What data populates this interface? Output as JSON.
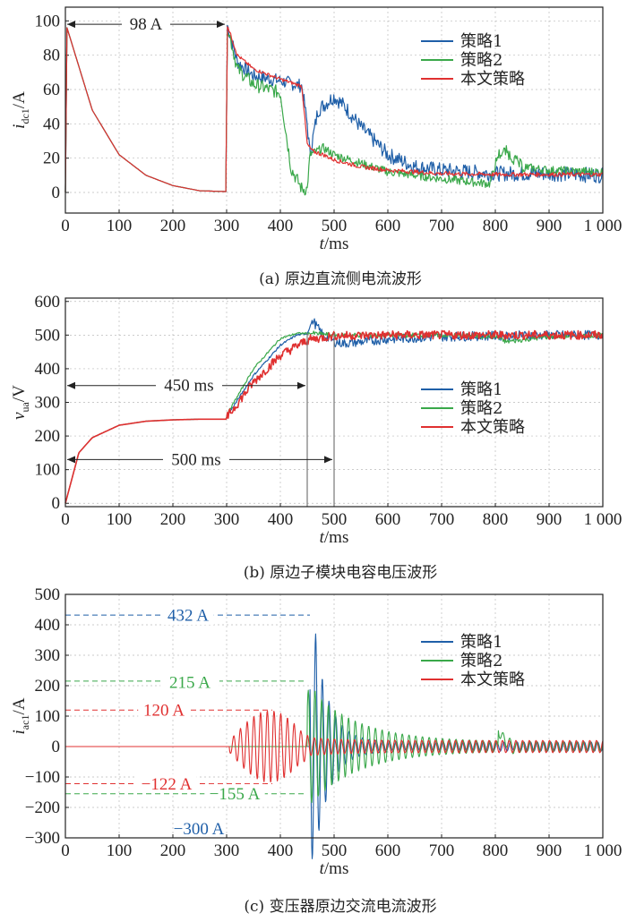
{
  "colors": {
    "strategy1": "#1f5fa8",
    "strategy2": "#3aa84a",
    "this_paper": "#e03030"
  },
  "chart_data": [
    {
      "type": "line",
      "caption": "(a) 原边直流侧电流波形",
      "ylabel_main": "i",
      "ylabel_sub": "dc1",
      "ylabel_unit": "/A",
      "xlabel_main": "t",
      "xlabel_unit": "/ms",
      "xlim": [
        0,
        1000
      ],
      "ylim": [
        -12,
        108
      ],
      "xticks": [
        0,
        100,
        200,
        300,
        400,
        500,
        600,
        700,
        800,
        900,
        1000
      ],
      "xtick_labels": [
        "0",
        "100",
        "200",
        "300",
        "400",
        "500",
        "600",
        "700",
        "800",
        "900",
        "1 000"
      ],
      "yticks": [
        0,
        20,
        40,
        60,
        80,
        100
      ],
      "ytick_labels": [
        "0",
        "20",
        "40",
        "60",
        "80",
        "100"
      ],
      "annotations": [
        {
          "text": "98 A",
          "x_from": 0,
          "x_to": 300,
          "y": 98,
          "color": "#222222"
        }
      ],
      "series": [
        {
          "name": "策略1",
          "x": [
            0,
            3,
            50,
            100,
            150,
            200,
            250,
            299,
            301,
            320,
            350,
            400,
            440,
            450,
            455,
            470,
            500,
            520,
            550,
            600,
            650,
            700,
            750,
            800,
            900,
            1000
          ],
          "y": [
            0,
            96,
            48,
            22,
            10,
            4,
            1,
            0.5,
            98,
            76,
            68,
            65,
            62,
            40,
            22,
            48,
            56,
            50,
            38,
            22,
            15,
            13,
            12,
            11,
            11,
            10
          ]
        },
        {
          "name": "策略2",
          "x": [
            0,
            3,
            50,
            100,
            150,
            200,
            250,
            299,
            301,
            320,
            350,
            400,
            420,
            440,
            450,
            455,
            480,
            500,
            550,
            600,
            700,
            790,
            805,
            820,
            850,
            900,
            1000
          ],
          "y": [
            0,
            96,
            48,
            22,
            10,
            4,
            1,
            0.5,
            98,
            72,
            63,
            58,
            14,
            2,
            2,
            22,
            26,
            22,
            17,
            12,
            8,
            5,
            22,
            24,
            15,
            13,
            12
          ]
        },
        {
          "name": "本文策略",
          "x": [
            0,
            3,
            50,
            100,
            150,
            200,
            250,
            299,
            301,
            320,
            350,
            400,
            440,
            450,
            460,
            480,
            500,
            550,
            600,
            700,
            800,
            1000
          ],
          "y": [
            0,
            96,
            48,
            22,
            10,
            4,
            1,
            0.5,
            98,
            80,
            72,
            66,
            62,
            28,
            24,
            22,
            19,
            15,
            13,
            11,
            10.5,
            10.5
          ]
        }
      ]
    },
    {
      "type": "line",
      "caption": "(b) 原边子模块电容电压波形",
      "ylabel_main": "v",
      "ylabel_sub": "ua",
      "ylabel_unit": "/V",
      "xlabel_main": "t",
      "xlabel_unit": "/ms",
      "xlim": [
        0,
        1000
      ],
      "ylim": [
        -10,
        610
      ],
      "xticks": [
        0,
        100,
        200,
        300,
        400,
        500,
        600,
        700,
        800,
        900,
        1000
      ],
      "xtick_labels": [
        "0",
        "100",
        "200",
        "300",
        "400",
        "500",
        "600",
        "700",
        "800",
        "900",
        "1 000"
      ],
      "yticks": [
        0,
        100,
        200,
        300,
        400,
        500,
        600
      ],
      "ytick_labels": [
        "0",
        "100",
        "200",
        "300",
        "400",
        "500",
        "600"
      ],
      "annotations": [
        {
          "text": "450 ms",
          "x_from": 0,
          "x_to": 450,
          "y": 350,
          "color": "#222222"
        },
        {
          "text": "500 ms",
          "x_from": 0,
          "x_to": 500,
          "y": 130,
          "color": "#222222"
        }
      ],
      "series": [
        {
          "name": "策略1",
          "x": [
            0,
            25,
            50,
            100,
            150,
            200,
            250,
            299,
            302,
            350,
            400,
            430,
            450,
            460,
            470,
            480,
            500,
            520,
            600,
            700,
            800,
            900,
            1000
          ],
          "y": [
            0,
            150,
            195,
            232,
            244,
            248,
            250,
            250,
            262,
            380,
            470,
            500,
            505,
            545,
            520,
            500,
            480,
            475,
            488,
            495,
            498,
            500,
            500
          ]
        },
        {
          "name": "策略2",
          "x": [
            0,
            25,
            50,
            100,
            150,
            200,
            250,
            299,
            302,
            350,
            400,
            430,
            460,
            500,
            600,
            700,
            800,
            820,
            900,
            1000
          ],
          "y": [
            0,
            150,
            195,
            232,
            244,
            248,
            250,
            250,
            268,
            400,
            490,
            505,
            505,
            500,
            500,
            500,
            495,
            480,
            495,
            500
          ]
        },
        {
          "name": "本文策略",
          "x": [
            0,
            25,
            50,
            100,
            150,
            200,
            250,
            299,
            302,
            350,
            400,
            450,
            500,
            600,
            700,
            800,
            900,
            1000
          ],
          "y": [
            0,
            150,
            195,
            232,
            244,
            248,
            250,
            250,
            258,
            360,
            440,
            485,
            498,
            500,
            500,
            500,
            500,
            500
          ]
        }
      ]
    },
    {
      "type": "line",
      "caption": "(c) 变压器原边交流电流波形",
      "ylabel_main": "i",
      "ylabel_sub": "ac1",
      "ylabel_unit": "/A",
      "xlabel_main": "t",
      "xlabel_unit": "/ms",
      "xlim": [
        0,
        1000
      ],
      "ylim": [
        -300,
        500
      ],
      "xticks": [
        0,
        100,
        200,
        300,
        400,
        500,
        600,
        700,
        800,
        900,
        1000
      ],
      "xtick_labels": [
        "0",
        "100",
        "200",
        "300",
        "400",
        "500",
        "600",
        "700",
        "800",
        "900",
        "1 000"
      ],
      "yticks": [
        -300,
        -200,
        -100,
        0,
        100,
        200,
        300,
        400,
        500
      ],
      "ytick_labels": [
        "−300",
        "−200",
        "−100",
        "0",
        "100",
        "200",
        "300",
        "400",
        "500"
      ],
      "annotations": [
        {
          "text": "432 A",
          "y": 432,
          "color": "#1f5fa8"
        },
        {
          "text": "215 A",
          "y": 215,
          "color": "#3aa84a"
        },
        {
          "text": "120 A",
          "y": 120,
          "color": "#e03030"
        },
        {
          "text": "−122 A",
          "y": -122,
          "color": "#e03030"
        },
        {
          "text": "−155 A",
          "y": -155,
          "color": "#3aa84a"
        },
        {
          "text": "−300 A",
          "y": -300,
          "color": "#1f5fa8"
        }
      ],
      "series": [
        {
          "name": "策略1",
          "peaks": {
            "max": 432,
            "min": -300
          }
        },
        {
          "name": "策略2",
          "peaks": {
            "max": 215,
            "min": -155
          }
        },
        {
          "name": "本文策略",
          "peaks": {
            "max": 120,
            "min": -122
          }
        }
      ]
    }
  ]
}
